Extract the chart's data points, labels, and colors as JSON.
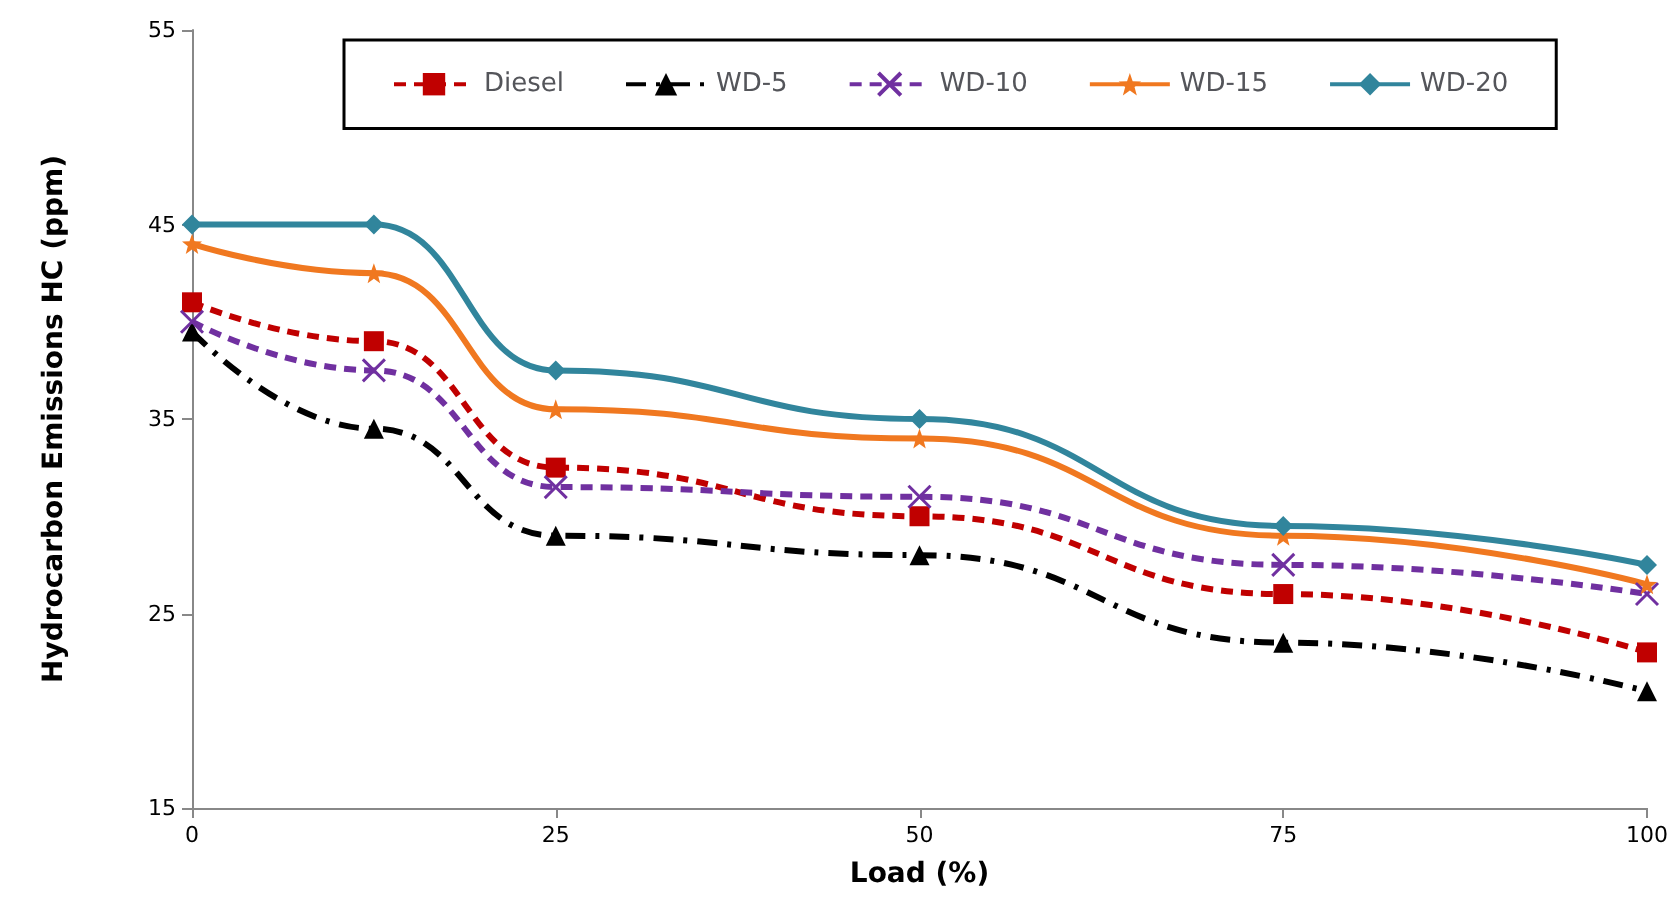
{
  "chart_data": {
    "type": "line",
    "xlabel": "Load (%)",
    "ylabel": "Hydrocarbon Emissions HC (ppm)",
    "x": [
      0,
      12.5,
      25,
      50,
      75,
      100
    ],
    "xlim": [
      0,
      100
    ],
    "xticks": [
      0,
      25,
      50,
      75,
      100
    ],
    "ylim": [
      15,
      55
    ],
    "yticks": [
      15,
      25,
      35,
      45,
      55
    ],
    "grid": false,
    "legend": "top",
    "series": [
      {
        "name": "Diesel",
        "color": "#c00000",
        "marker": "square",
        "line_style": "dashed",
        "values": [
          41,
          39,
          32.5,
          30,
          26,
          23
        ]
      },
      {
        "name": "WD-5",
        "color": "#000000",
        "marker": "triangle",
        "line_style": "dashdot",
        "values": [
          39.5,
          34.5,
          29,
          28,
          23.5,
          21
        ]
      },
      {
        "name": "WD-10",
        "color": "#7030a0",
        "marker": "cross",
        "line_style": "dashed",
        "values": [
          40,
          37.5,
          31.5,
          31,
          27.5,
          26
        ]
      },
      {
        "name": "WD-15",
        "color": "#f07820",
        "marker": "star",
        "line_style": "solid",
        "values": [
          44,
          42.5,
          35.5,
          34,
          29,
          26.5
        ]
      },
      {
        "name": "WD-20",
        "color": "#31859c",
        "marker": "diamond",
        "line_style": "solid",
        "values": [
          45,
          45,
          37.5,
          35,
          29.5,
          27.5
        ]
      }
    ]
  }
}
